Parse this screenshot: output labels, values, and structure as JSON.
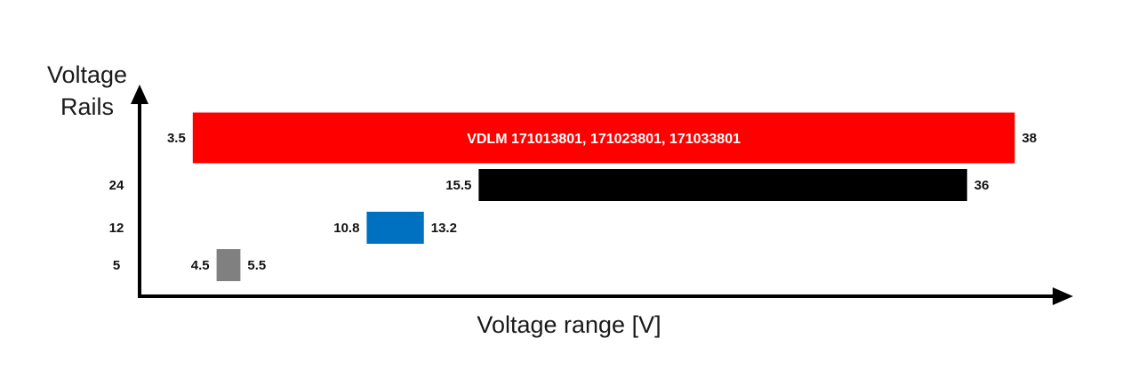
{
  "chart_data": {
    "type": "bar",
    "orientation": "horizontal-range",
    "title": "",
    "xlabel": "Voltage range [V]",
    "ylabel_lines": [
      "Voltage",
      "Rails"
    ],
    "y_categories": [
      "",
      "24",
      "12",
      "5"
    ],
    "series": [
      {
        "start": 3.5,
        "end": 38,
        "color": "#ff0000",
        "label": "VDLM 171013801, 171023801, 171033801",
        "start_label": "3.5",
        "end_label": "38"
      },
      {
        "start": 15.5,
        "end": 36,
        "color": "#000000",
        "label": "",
        "start_label": "15.5",
        "end_label": "36"
      },
      {
        "start": 10.8,
        "end": 13.2,
        "color": "#0070c0",
        "label": "",
        "start_label": "10.8",
        "end_label": "13.2"
      },
      {
        "start": 4.5,
        "end": 5.5,
        "color": "#808080",
        "label": "",
        "start_label": "4.5",
        "end_label": "5.5"
      }
    ],
    "axis_color": "#000000",
    "grid": false
  }
}
